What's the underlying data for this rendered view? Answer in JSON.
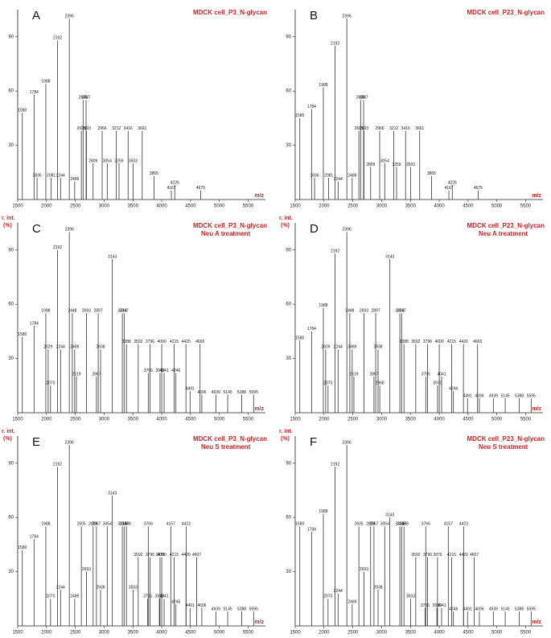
{
  "chart_data": [
    {
      "type": "bar",
      "panel": "A",
      "title": "MDCK cell_P3_N-glycan",
      "xlabel": "m/z",
      "x": [
        1580,
        1784,
        1836,
        1988,
        2081,
        2192,
        2244,
        2396,
        2489,
        2605,
        2635,
        2687,
        2693,
        2809,
        2966,
        3054,
        3212,
        3259,
        3416,
        3503,
        3661,
        3865,
        4167,
        4226,
        4675
      ],
      "values": [
        48,
        58,
        12,
        64,
        12,
        88,
        12,
        100,
        10,
        38,
        55,
        55,
        38,
        20,
        38,
        20,
        38,
        20,
        38,
        20,
        38,
        13,
        5,
        8,
        5
      ],
      "xlim": [
        1500,
        5800
      ],
      "ylim": [
        0,
        105
      ],
      "xticks": [
        1500,
        2000,
        2500,
        3000,
        3500,
        4000,
        4500,
        5000,
        5500
      ],
      "yticks": [
        30,
        60,
        90
      ],
      "color": "#333333"
    },
    {
      "type": "bar",
      "panel": "B",
      "title": "MDCK cell_P23_N-glycan",
      "xlabel": "m/z",
      "x": [
        1580,
        1784,
        1836,
        1988,
        2081,
        2192,
        2244,
        2396,
        2489,
        2605,
        2635,
        2687,
        2693,
        2809,
        2966,
        3054,
        3212,
        3259,
        3416,
        3503,
        3661,
        3865,
        4167,
        4226,
        4675
      ],
      "values": [
        45,
        50,
        12,
        62,
        12,
        85,
        10,
        100,
        12,
        38,
        55,
        55,
        38,
        18,
        38,
        20,
        38,
        18,
        38,
        18,
        38,
        13,
        5,
        8,
        5
      ],
      "xlim": [
        1500,
        5800
      ],
      "ylim": [
        0,
        105
      ],
      "xticks": [
        1500,
        2000,
        2500,
        3000,
        3500,
        4000,
        4500,
        5000,
        5500
      ],
      "yticks": [
        30,
        60,
        90
      ],
      "color": "#333333"
    },
    {
      "type": "bar",
      "panel": "C",
      "title": "MDCK cell_P3_N-glycan",
      "subtitle": "Neu A treatment",
      "ylabel": "r. int.",
      "yunit": "(%)",
      "xlabel": "m/z",
      "x": [
        1580,
        1784,
        1988,
        2029,
        2070,
        2192,
        2244,
        2396,
        2448,
        2489,
        2519,
        2693,
        2867,
        2897,
        2938,
        3143,
        3316,
        3347,
        3388,
        3592,
        3766,
        3796,
        3970,
        4000,
        4041,
        4215,
        4246,
        4420,
        4491,
        4665,
        4696,
        4939,
        5145,
        5388,
        5595
      ],
      "values": [
        42,
        48,
        55,
        35,
        15,
        90,
        35,
        100,
        55,
        35,
        20,
        55,
        20,
        55,
        35,
        85,
        55,
        55,
        38,
        38,
        22,
        38,
        22,
        38,
        22,
        38,
        22,
        38,
        12,
        38,
        10,
        10,
        10,
        10,
        10
      ],
      "xlim": [
        1500,
        5800
      ],
      "ylim": [
        0,
        105
      ],
      "xticks": [
        1500,
        2000,
        2500,
        3000,
        3500,
        4000,
        4500,
        5000,
        5500
      ],
      "yticks": [
        30,
        60,
        90
      ],
      "color": "#333333"
    },
    {
      "type": "bar",
      "panel": "D",
      "title": "MDCK cell_P23_N-glycan",
      "subtitle": "Neu A treatment",
      "ylabel": "r. int.",
      "yunit": "(%)",
      "xlabel": "m/z",
      "x": [
        1580,
        1784,
        1988,
        2029,
        2070,
        2192,
        2244,
        2396,
        2448,
        2489,
        2519,
        2693,
        2867,
        2897,
        2938,
        2968,
        3143,
        3316,
        3347,
        3388,
        3592,
        3766,
        3796,
        3970,
        4000,
        4041,
        4215,
        4246,
        4420,
        4491,
        4665,
        4696,
        4939,
        5145,
        5388,
        5595
      ],
      "values": [
        40,
        45,
        58,
        35,
        15,
        88,
        35,
        100,
        55,
        35,
        20,
        55,
        20,
        55,
        35,
        15,
        85,
        55,
        55,
        38,
        38,
        20,
        38,
        15,
        38,
        20,
        38,
        12,
        38,
        8,
        38,
        8,
        8,
        8,
        8,
        8
      ],
      "xlim": [
        1500,
        5800
      ],
      "ylim": [
        0,
        105
      ],
      "xticks": [
        1500,
        2000,
        2500,
        3000,
        3500,
        4000,
        4500,
        5000,
        5500
      ],
      "yticks": [
        30,
        60,
        90
      ],
      "color": "#333333"
    },
    {
      "type": "bar",
      "panel": "E",
      "title": "MDCK cell_P3_N-glycan",
      "subtitle": "Neu S treatment",
      "ylabel": "r. int.",
      "yunit": "(%)",
      "xlabel": "m/z",
      "x": [
        1580,
        1784,
        1988,
        2070,
        2192,
        2244,
        2396,
        2489,
        2605,
        2693,
        2809,
        2867,
        2938,
        3054,
        3143,
        3316,
        3347,
        3388,
        3503,
        3592,
        3755,
        3766,
        3796,
        3959,
        3970,
        4000,
        4041,
        4157,
        4215,
        4246,
        4420,
        4423,
        4491,
        4607,
        4696,
        4939,
        5145,
        5388,
        5595
      ],
      "values": [
        42,
        48,
        55,
        15,
        88,
        20,
        100,
        15,
        55,
        30,
        55,
        55,
        20,
        55,
        72,
        55,
        55,
        55,
        20,
        38,
        15,
        55,
        38,
        15,
        38,
        38,
        15,
        55,
        38,
        12,
        38,
        55,
        10,
        38,
        10,
        8,
        8,
        8,
        8
      ],
      "xlim": [
        1500,
        5800
      ],
      "ylim": [
        0,
        105
      ],
      "xticks": [
        1500,
        2000,
        2500,
        3000,
        3500,
        4000,
        4500,
        5000,
        5500
      ],
      "yticks": [
        30,
        60,
        90
      ],
      "color": "#333333"
    },
    {
      "type": "bar",
      "panel": "F",
      "title": "MDCK cell_P23_N-glycan",
      "subtitle": "Neu S treatment",
      "ylabel": "r. int.",
      "yunit": "(%)",
      "xlabel": "m/z",
      "x": [
        1580,
        1784,
        1988,
        2070,
        2192,
        2244,
        2396,
        2489,
        2605,
        2693,
        2809,
        2867,
        2938,
        3054,
        3143,
        3316,
        3347,
        3388,
        3503,
        3592,
        3755,
        3766,
        3796,
        3959,
        3970,
        4041,
        4157,
        4215,
        4246,
        4420,
        4423,
        4491,
        4607,
        4696,
        4939,
        5145,
        5388,
        5595
      ],
      "values": [
        55,
        52,
        62,
        15,
        88,
        18,
        100,
        12,
        55,
        30,
        55,
        55,
        20,
        55,
        60,
        55,
        55,
        55,
        15,
        38,
        10,
        55,
        38,
        10,
        38,
        10,
        55,
        38,
        8,
        38,
        55,
        8,
        38,
        8,
        8,
        8,
        8,
        8
      ],
      "xlim": [
        1500,
        5800
      ],
      "ylim": [
        0,
        105
      ],
      "xticks": [
        1500,
        2000,
        2500,
        3000,
        3500,
        4000,
        4500,
        5000,
        5500
      ],
      "yticks": [
        30,
        60,
        90
      ],
      "color": "#333333"
    }
  ]
}
